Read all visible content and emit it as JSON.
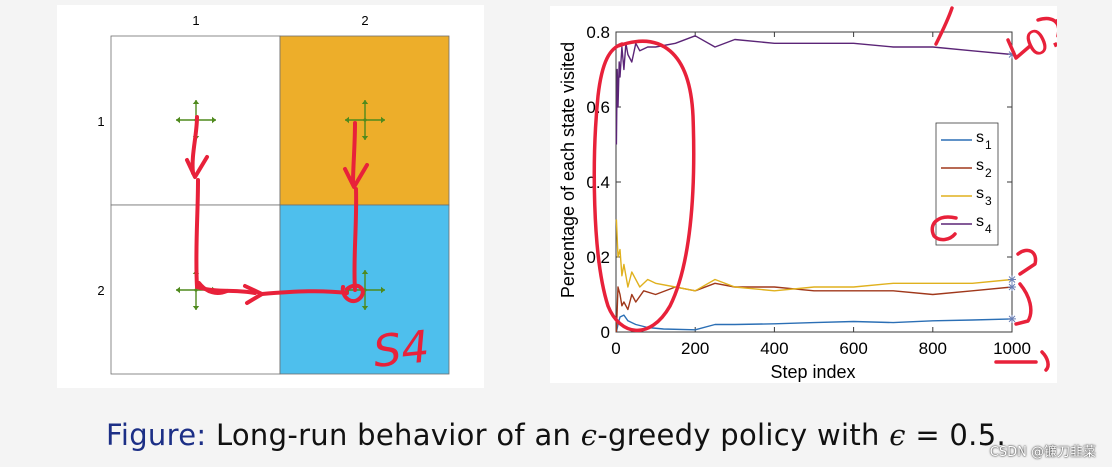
{
  "grid": {
    "col_labels": [
      "1",
      "2"
    ],
    "row_labels": [
      "1",
      "2"
    ],
    "cell_colors": {
      "s1": "#ffffff",
      "s2": "#edae2a",
      "s3": "#ffffff",
      "s4": "#4ebfed"
    },
    "arrow_color": "#4f8a1d",
    "annotation": "S4"
  },
  "chart_data": {
    "type": "line",
    "xlabel": "Step index",
    "ylabel": "Percentage of each state visited",
    "xlim": [
      0,
      1000
    ],
    "ylim": [
      0,
      0.8
    ],
    "xticks": [
      0,
      200,
      400,
      600,
      800,
      1000
    ],
    "yticks": [
      0,
      0.2,
      0.4,
      0.6,
      0.8
    ],
    "legend_position": "right",
    "series": [
      {
        "name": "s",
        "sub": "1",
        "color": "#2b6fb5",
        "x": [
          1,
          5,
          10,
          20,
          30,
          50,
          80,
          120,
          200,
          250,
          300,
          400,
          500,
          600,
          700,
          800,
          900,
          1000
        ],
        "y": [
          0,
          0.02,
          0.04,
          0.045,
          0.03,
          0.02,
          0.012,
          0.008,
          0.006,
          0.02,
          0.02,
          0.022,
          0.025,
          0.028,
          0.025,
          0.03,
          0.032,
          0.035
        ]
      },
      {
        "name": "s",
        "sub": "2",
        "color": "#a0381b",
        "x": [
          1,
          5,
          10,
          15,
          20,
          30,
          40,
          50,
          70,
          100,
          150,
          200,
          250,
          300,
          400,
          500,
          600,
          700,
          800,
          900,
          1000
        ],
        "y": [
          0,
          0.12,
          0.1,
          0.07,
          0.08,
          0.06,
          0.1,
          0.08,
          0.11,
          0.1,
          0.12,
          0.11,
          0.13,
          0.12,
          0.12,
          0.11,
          0.11,
          0.11,
          0.1,
          0.11,
          0.12
        ]
      },
      {
        "name": "s",
        "sub": "3",
        "color": "#e0b11e",
        "x": [
          1,
          5,
          10,
          15,
          20,
          30,
          40,
          60,
          80,
          100,
          150,
          200,
          250,
          300,
          400,
          500,
          600,
          700,
          800,
          900,
          1000
        ],
        "y": [
          0.3,
          0.2,
          0.22,
          0.15,
          0.18,
          0.12,
          0.16,
          0.12,
          0.14,
          0.13,
          0.12,
          0.11,
          0.14,
          0.12,
          0.11,
          0.12,
          0.12,
          0.13,
          0.13,
          0.13,
          0.14
        ]
      },
      {
        "name": "s",
        "sub": "4",
        "color": "#5b2577",
        "x": [
          1,
          3,
          5,
          8,
          10,
          15,
          20,
          25,
          30,
          40,
          50,
          60,
          80,
          100,
          150,
          200,
          250,
          300,
          400,
          500,
          600,
          700,
          800,
          900,
          1000
        ],
        "y": [
          0.5,
          0.7,
          0.6,
          0.72,
          0.68,
          0.76,
          0.7,
          0.77,
          0.74,
          0.72,
          0.77,
          0.75,
          0.76,
          0.76,
          0.77,
          0.79,
          0.76,
          0.78,
          0.77,
          0.77,
          0.77,
          0.76,
          0.76,
          0.75,
          0.74
        ]
      }
    ],
    "annotations": [
      "0.7"
    ]
  },
  "caption": {
    "lead": "Figure:",
    "text": " Long-run behavior of an ",
    "eps1": "ϵ",
    "mid": "-greedy policy with ",
    "eps2": "ϵ",
    "eq": " = 0.5."
  },
  "watermark": "CSDN @镰刀韭菜"
}
